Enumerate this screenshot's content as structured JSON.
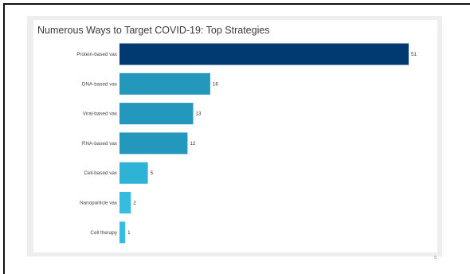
{
  "slide": {
    "page_number": "5"
  },
  "chart_data": {
    "type": "bar",
    "orientation": "horizontal",
    "title": "Numerous Ways to Target COVID-19:  Top Strategies",
    "categories": [
      "Protein-based vax",
      "DNA-based vax",
      "Viral-based vax",
      "RNA-based vax",
      "Cell-based vax",
      "Nanoparticle vax",
      "Cell therapy"
    ],
    "values": [
      51,
      16,
      13,
      12,
      5,
      2,
      1
    ],
    "xlim": [
      0,
      51
    ],
    "grid": false,
    "legend": "none",
    "colors": [
      "#003a70",
      "#2497bd",
      "#2497bd",
      "#2497bd",
      "#2eb2d6",
      "#35bcde",
      "#35bcde"
    ]
  }
}
